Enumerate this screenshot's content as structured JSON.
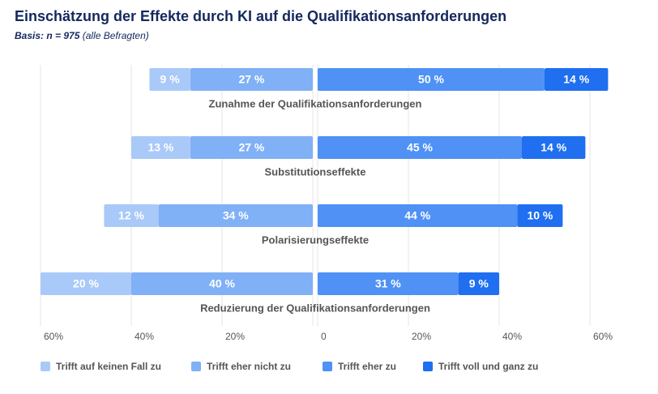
{
  "chart_data": {
    "type": "diverging-bar",
    "title": "Einschätzung der Effekte durch KI auf die Qualifikationsanforderungen",
    "subtitle": [
      "Basis: n = 975",
      "(alle Befragten)"
    ],
    "categories": [
      "Zunahme der Qualifikationsanforderungen",
      "Substitutionseffekte",
      "Polarisierungseffekte",
      "Reduzierung der Qualifikationsanforderungen"
    ],
    "series": [
      {
        "name": "Trifft auf keinen Fall zu",
        "color": "#a9c9f8",
        "values": [
          9,
          13,
          12,
          20
        ],
        "value_labels": [
          "9 %",
          "13 %",
          "12 %",
          "20 %"
        ]
      },
      {
        "name": "Trifft eher nicht zu",
        "color": "#80b0f6",
        "values": [
          27,
          27,
          34,
          40
        ],
        "value_labels": [
          "27 %",
          "27 %",
          "34 %",
          "40 %"
        ]
      },
      {
        "name": "Trifft eher zu",
        "color": "#4f91f5",
        "values": [
          50,
          45,
          44,
          31
        ],
        "value_labels": [
          "50 %",
          "45 %",
          "44 %",
          "31 %"
        ]
      },
      {
        "name": "Trifft voll und ganz zu",
        "color": "#1f6ff0",
        "values": [
          14,
          14,
          10,
          9
        ],
        "value_labels": [
          "14 %",
          "14 %",
          "10 %",
          "9 %"
        ]
      }
    ],
    "xlim": [
      -60,
      60
    ],
    "xticks": [
      {
        "value": -60,
        "label": "60%"
      },
      {
        "value": -40,
        "label": "40%"
      },
      {
        "value": -20,
        "label": "20%"
      },
      0,
      {
        "value": 20,
        "label": "20%"
      },
      {
        "value": 40,
        "label": "40%"
      },
      {
        "value": 60,
        "label": "60%"
      }
    ],
    "grid": true
  }
}
